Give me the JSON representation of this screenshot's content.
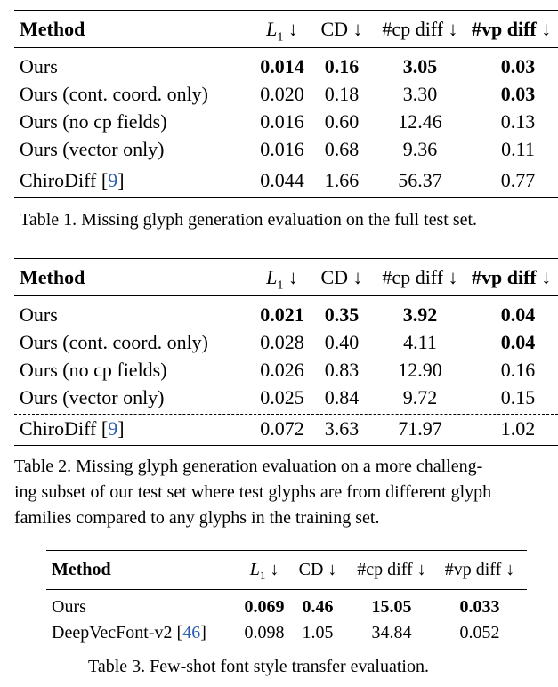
{
  "tables": [
    {
      "headers": [
        "Method",
        "L1 ↓",
        "CD ↓",
        "#cp diff ↓",
        "#vp diff ↓"
      ],
      "rows": [
        {
          "method": "Ours",
          "l1": "0.014",
          "cd": "0.16",
          "cp": "3.05",
          "vp": "0.03",
          "bold": [
            true,
            true,
            true,
            true
          ]
        },
        {
          "method": "Ours (cont. coord. only)",
          "l1": "0.020",
          "cd": "0.18",
          "cp": "3.30",
          "vp": "0.03",
          "bold": [
            false,
            false,
            false,
            true
          ]
        },
        {
          "method": "Ours (no cp fields)",
          "l1": "0.016",
          "cd": "0.60",
          "cp": "12.46",
          "vp": "0.13",
          "bold": [
            false,
            false,
            false,
            false
          ]
        },
        {
          "method": "Ours (vector only)",
          "l1": "0.016",
          "cd": "0.68",
          "cp": "9.36",
          "vp": "0.11",
          "bold": [
            false,
            false,
            false,
            false
          ]
        },
        {
          "method": "ChiroDiff",
          "ref": "9",
          "l1": "0.044",
          "cd": "1.66",
          "cp": "56.37",
          "vp": "0.77",
          "bold": [
            false,
            false,
            false,
            false
          ]
        }
      ],
      "caption": [
        "Table 1. Missing glyph generation evaluation on the full test set."
      ]
    },
    {
      "headers": [
        "Method",
        "L1 ↓",
        "CD ↓",
        "#cp diff ↓",
        "#vp diff ↓"
      ],
      "rows": [
        {
          "method": "Ours",
          "l1": "0.021",
          "cd": "0.35",
          "cp": "3.92",
          "vp": "0.04",
          "bold": [
            true,
            true,
            true,
            true
          ]
        },
        {
          "method": "Ours (cont. coord. only)",
          "l1": "0.028",
          "cd": "0.40",
          "cp": "4.11",
          "vp": "0.04",
          "bold": [
            false,
            false,
            false,
            true
          ]
        },
        {
          "method": "Ours (no cp fields)",
          "l1": "0.026",
          "cd": "0.83",
          "cp": "12.90",
          "vp": "0.16",
          "bold": [
            false,
            false,
            false,
            false
          ]
        },
        {
          "method": "Ours (vector only)",
          "l1": "0.025",
          "cd": "0.84",
          "cp": "9.72",
          "vp": "0.15",
          "bold": [
            false,
            false,
            false,
            false
          ]
        },
        {
          "method": "ChiroDiff",
          "ref": "9",
          "l1": "0.072",
          "cd": "3.63",
          "cp": "71.97",
          "vp": "1.02",
          "bold": [
            false,
            false,
            false,
            false
          ]
        }
      ],
      "caption": [
        "Table 2. Missing glyph generation evaluation on a more challeng-",
        "ing subset of our test set where test glyphs are from different glyph",
        "families compared to any glyphs in the training set."
      ]
    },
    {
      "headers": [
        "Method",
        "L1 ↓",
        "CD ↓",
        "#cp diff ↓",
        "#vp diff ↓"
      ],
      "rows": [
        {
          "method": "Ours",
          "l1": "0.069",
          "cd": "0.46",
          "cp": "15.05",
          "vp": "0.033",
          "bold": [
            true,
            true,
            true,
            true
          ]
        },
        {
          "method": "DeepVecFont-v2",
          "ref": "46",
          "l1": "0.098",
          "cd": "1.05",
          "cp": "34.84",
          "vp": "0.052",
          "bold": [
            false,
            false,
            false,
            false
          ]
        }
      ],
      "caption": [
        "Table 3. Few-shot font style transfer evaluation."
      ]
    }
  ]
}
